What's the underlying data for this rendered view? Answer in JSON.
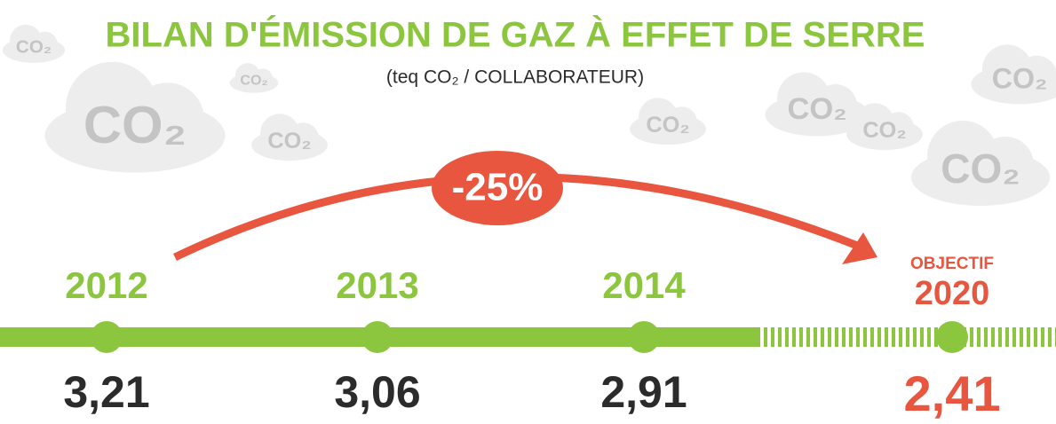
{
  "header": {
    "title": "BILAN D'ÉMISSION DE GAZ À EFFET DE SERRE",
    "subtitle": "(teq CO₂ / COLLABORATEUR)"
  },
  "decor": {
    "cloud_label": "CO₂"
  },
  "badge": "-25%",
  "timeline": [
    {
      "year": "2012",
      "value": "3,21"
    },
    {
      "year": "2013",
      "value": "3,06"
    },
    {
      "year": "2014",
      "value": "2,91"
    },
    {
      "label": "OBJECTIF",
      "year": "2020",
      "value": "2,41"
    }
  ]
}
